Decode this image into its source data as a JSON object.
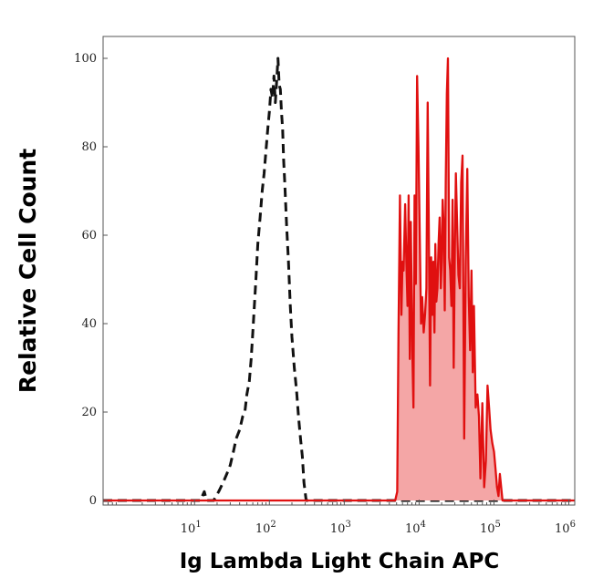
{
  "chart_data": {
    "type": "area",
    "title": "",
    "xlabel": "Ig Lambda Light Chain APC",
    "ylabel": "Relative Cell Count",
    "xscale": "log",
    "xlim": [
      0.6,
      1200000
    ],
    "ylim": [
      0,
      100
    ],
    "xticks": [
      {
        "base": "10",
        "exp": "1",
        "value": 10
      },
      {
        "base": "10",
        "exp": "2",
        "value": 100
      },
      {
        "base": "10",
        "exp": "3",
        "value": 1000
      },
      {
        "base": "10",
        "exp": "4",
        "value": 10000
      },
      {
        "base": "10",
        "exp": "5",
        "value": 100000
      },
      {
        "base": "10",
        "exp": "6",
        "value": 1000000
      }
    ],
    "yticks": [
      {
        "label": "0",
        "value": 0
      },
      {
        "label": "20",
        "value": 20
      },
      {
        "label": "40",
        "value": 40
      },
      {
        "label": "60",
        "value": 60
      },
      {
        "label": "80",
        "value": 80
      },
      {
        "label": "100",
        "value": 100
      }
    ],
    "grid": false,
    "colors": {
      "isotype_line": "#111111",
      "stained_line": "#e01010",
      "stained_fill": "#f4a6a6",
      "axis": "#555555"
    },
    "series": [
      {
        "role": "isotype-control",
        "style": "dashed",
        "fill": false,
        "x": [
          0.6,
          12,
          13.5,
          14.5,
          16,
          18,
          21,
          24,
          27,
          30,
          33,
          36,
          40,
          44,
          47,
          50,
          54,
          57,
          60,
          63,
          66,
          70,
          75,
          80,
          85,
          90,
          95,
          100,
          105,
          110,
          115,
          120,
          125,
          130,
          135,
          140,
          145,
          150,
          155,
          160,
          170,
          180,
          190,
          200,
          215,
          230,
          245,
          260,
          275,
          290,
          310,
          320,
          1200000
        ],
        "y": [
          0,
          0,
          2,
          0,
          0,
          0,
          2,
          4,
          6,
          8,
          11,
          14,
          16,
          19,
          20,
          24,
          27,
          32,
          38,
          44,
          50,
          58,
          64,
          70,
          74,
          79,
          84,
          88,
          93,
          91,
          96,
          90,
          95,
          100,
          94,
          93,
          88,
          84,
          77,
          72,
          62,
          54,
          44,
          37,
          30,
          25,
          19,
          14,
          10,
          4,
          0,
          0,
          0
        ]
      },
      {
        "role": "stained",
        "style": "solid",
        "fill": true,
        "x": [
          0.6,
          4800,
          5100,
          5300,
          5550,
          5800,
          6000,
          6200,
          6500,
          6750,
          7000,
          7250,
          7500,
          7750,
          8100,
          8400,
          8700,
          9050,
          9400,
          9800,
          10200,
          10600,
          11000,
          11500,
          12000,
          12500,
          13000,
          13500,
          14000,
          14500,
          15000,
          15500,
          16000,
          16500,
          17000,
          17600,
          18200,
          18800,
          19500,
          20000,
          20600,
          21300,
          22000,
          22700,
          23500,
          24300,
          25200,
          26000,
          27000,
          28000,
          29000,
          30000,
          31000,
          32000,
          33500,
          35000,
          36500,
          38000,
          40000,
          42000,
          44000,
          46000,
          48000,
          50000,
          52000,
          54000,
          57000,
          60000,
          63000,
          66000,
          70000,
          74000,
          78000,
          82000,
          86000,
          90000,
          95000,
          100000,
          105000,
          110000,
          115000,
          120000,
          130000,
          1200000
        ],
        "y": [
          0,
          0,
          2,
          38,
          69,
          42,
          54,
          52,
          67,
          54,
          44,
          69,
          32,
          63,
          34,
          21,
          69,
          49,
          96,
          80,
          60,
          40,
          46,
          38,
          42,
          48,
          90,
          60,
          26,
          55,
          42,
          54,
          38,
          58,
          45,
          48,
          58,
          64,
          48,
          54,
          68,
          62,
          43,
          72,
          92,
          100,
          55,
          52,
          44,
          68,
          30,
          57,
          74,
          64,
          51,
          48,
          72,
          78,
          14,
          54,
          75,
          46,
          34,
          52,
          29,
          44,
          21,
          24,
          19,
          5,
          22,
          3,
          9,
          26,
          21,
          16,
          13,
          11,
          7,
          3,
          1,
          6,
          0,
          0
        ]
      }
    ]
  }
}
